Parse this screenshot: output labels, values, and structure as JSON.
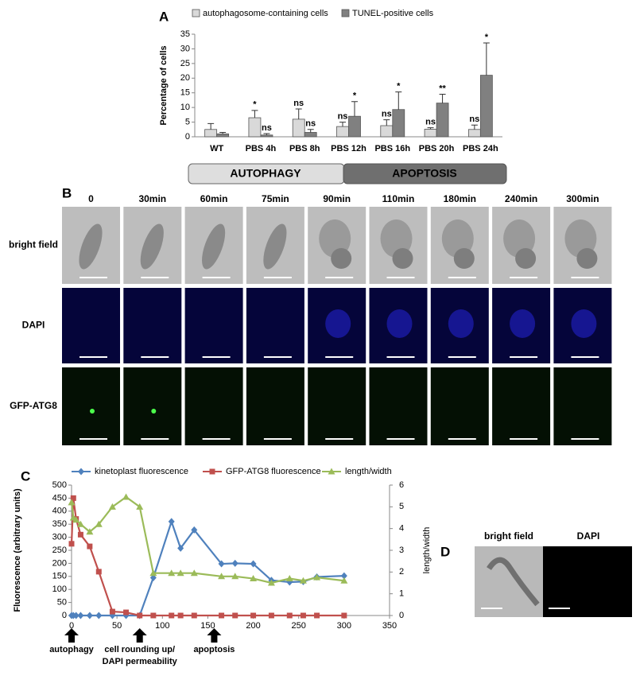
{
  "panel_labels": {
    "a": "A",
    "b": "B",
    "c": "C",
    "d": "D"
  },
  "chart_data": [
    {
      "type": "bar",
      "y_label": "Percentage of cells",
      "categories": [
        "WT",
        "PBS 4h",
        "PBS 8h",
        "PBS 12h",
        "PBS 16h",
        "PBS 20h",
        "PBS 24h"
      ],
      "series": [
        {
          "name": "autophagosome-containing cells",
          "color": "#d9d9d9",
          "values": [
            2.5,
            6.5,
            6,
            3.5,
            3.8,
            2.6,
            2.5
          ],
          "errors": [
            2,
            2.5,
            3.5,
            1.5,
            2,
            0.5,
            1.5
          ],
          "significance": [
            null,
            "*",
            "ns",
            "ns",
            "ns",
            "ns",
            "ns"
          ]
        },
        {
          "name": "TUNEL-positive cells",
          "color": "#808080",
          "values": [
            1,
            0.6,
            1.5,
            7,
            9.3,
            11.5,
            21
          ],
          "errors": [
            0.5,
            0.5,
            1,
            5,
            6,
            3,
            11
          ],
          "significance": [
            null,
            "ns",
            "ns",
            "*",
            "*",
            "**",
            "*"
          ]
        }
      ],
      "ylim": [
        0,
        35
      ],
      "yticks": [
        0,
        5,
        10,
        15,
        20,
        25,
        30,
        35
      ]
    },
    {
      "type": "line",
      "y_label": "Fluorescence (arbitrary units)",
      "y2_label": "length/width",
      "x": [
        0,
        2,
        5,
        10,
        20,
        30,
        45,
        60,
        75,
        90,
        110,
        120,
        135,
        165,
        180,
        200,
        220,
        240,
        255,
        270,
        300
      ],
      "series": [
        {
          "name": "kinetoplast fluorescence",
          "color": "#4f81bd",
          "marker": "diamond",
          "values": [
            0,
            0,
            0,
            0,
            0,
            0,
            0,
            0,
            0,
            145,
            360,
            258,
            328,
            198,
            200,
            198,
            135,
            128,
            130,
            148,
            152
          ]
        },
        {
          "name": "GFP-ATG8 fluorescence",
          "color": "#c0504d",
          "marker": "square",
          "values": [
            275,
            450,
            370,
            310,
            265,
            168,
            15,
            12,
            0,
            0,
            0,
            0,
            0,
            0,
            0,
            0,
            0,
            0,
            0,
            0,
            0
          ]
        },
        {
          "name": "length/width",
          "color": "#9bbb59",
          "marker": "triangle",
          "axis": "y2",
          "values": [
            5.2,
            4.5,
            4.4,
            4.2,
            3.85,
            4.2,
            5,
            5.45,
            5,
            1.95,
            1.95,
            1.95,
            1.95,
            1.8,
            1.8,
            1.7,
            1.5,
            1.7,
            1.6,
            1.75,
            1.6
          ]
        }
      ],
      "xlim": [
        0,
        350
      ],
      "xticks": [
        0,
        50,
        100,
        150,
        200,
        250,
        300,
        350
      ],
      "ylim": [
        0,
        500
      ],
      "yticks": [
        0,
        50,
        100,
        150,
        200,
        250,
        300,
        350,
        400,
        450,
        500
      ],
      "y2lim": [
        0,
        6
      ],
      "y2ticks": [
        0,
        1,
        2,
        3,
        4,
        5,
        6
      ],
      "annotations": [
        {
          "x": 0,
          "lines": [
            "autophagy"
          ]
        },
        {
          "x": 75,
          "lines": [
            "cell rounding up/",
            "DAPI permeability"
          ]
        },
        {
          "x": 157,
          "lines": [
            "apoptosis"
          ]
        }
      ]
    }
  ],
  "phase_bar": {
    "autophagy": "AUTOPHAGY",
    "apoptosis": "APOPTOSIS"
  },
  "panel_b": {
    "columns": [
      "0",
      "30min",
      "60min",
      "75min",
      "90min",
      "110min",
      "180min",
      "240min",
      "300min"
    ],
    "rows": [
      "bright field",
      "DAPI",
      "GFP-ATG8"
    ]
  },
  "panel_d": {
    "columns": [
      "bright field",
      "DAPI"
    ]
  }
}
